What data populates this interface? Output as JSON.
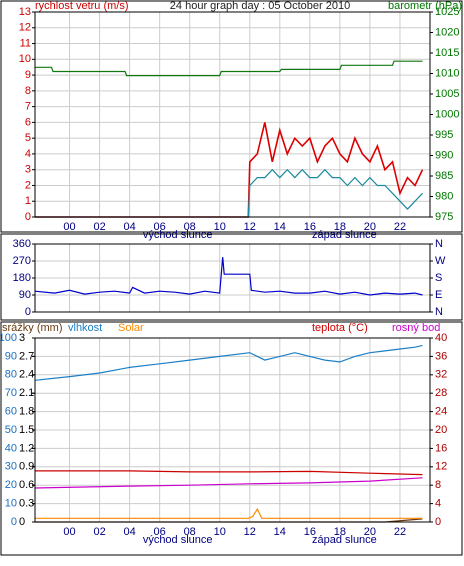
{
  "chart_data": [
    {
      "type": "line",
      "title": "24 hour graph day : 05 October 2010",
      "ylabel": "rychlost vetru (m/s)",
      "y2label": "barometr (hPa)",
      "xlim": [
        -2.3,
        24
      ],
      "xticks": [
        {
          "value": 0,
          "label": "00"
        },
        {
          "value": 2,
          "label": "02"
        },
        {
          "value": 4,
          "label": "04"
        },
        {
          "value": 6,
          "label": "06"
        },
        {
          "value": 8,
          "label": "08"
        },
        10,
        12,
        14,
        16,
        18,
        20,
        22
      ],
      "show_xtick_labels": true,
      "ylim": [
        0,
        13
      ],
      "yticks": [
        0,
        1,
        2,
        3,
        4,
        5,
        6,
        7,
        8,
        9,
        10,
        11,
        12,
        13
      ],
      "ycolor": "#cc0000",
      "y2lim": [
        975,
        1025
      ],
      "y2ticks": [
        975,
        980,
        985,
        990,
        995,
        1000,
        1005,
        1010,
        1015,
        1020,
        1025
      ],
      "y2color": "#007700",
      "grid": true,
      "annotations": [
        {
          "text": "východ slunce",
          "x": 7.2
        },
        {
          "text": "západ slunce",
          "x": 18.3
        }
      ],
      "series": [
        {
          "color": "#dd0000",
          "axis": "y",
          "x": [
            -2.3,
            11.9,
            12,
            12.5,
            13,
            13.5,
            14,
            14.5,
            15,
            15.5,
            16,
            16.5,
            17,
            17.5,
            18,
            18.5,
            19,
            19.5,
            20,
            20.5,
            21,
            21.5,
            22,
            22.5,
            23,
            23.5
          ],
          "values": [
            0,
            0,
            3.5,
            4,
            6,
            3.5,
            5.5,
            4,
            5,
            4.5,
            5,
            3.5,
            4.5,
            5,
            4,
            3.5,
            5,
            4,
            3.5,
            4.5,
            3,
            3.5,
            1.5,
            2.5,
            2,
            3
          ]
        },
        {
          "color": "#1a8aa0",
          "axis": "y",
          "x": [
            -2.3,
            11.9,
            12,
            12.5,
            13,
            13.5,
            14,
            14.5,
            15,
            15.5,
            16,
            16.5,
            17,
            17.5,
            18,
            18.5,
            19,
            19.5,
            20,
            20.5,
            21,
            21.5,
            22,
            22.5,
            23,
            23.5
          ],
          "values": [
            0,
            0,
            2,
            2.5,
            2.5,
            3,
            2.5,
            3,
            2.5,
            3,
            2.5,
            2.5,
            3,
            2.5,
            2.5,
            2,
            2.5,
            2,
            2.5,
            2,
            2,
            1.5,
            1,
            0.5,
            1,
            1.5
          ]
        },
        {
          "color": "#117711",
          "axis": "y2",
          "x": [
            -2.3,
            -1.2,
            -1.1,
            3.7,
            3.8,
            10,
            10.1,
            14,
            14.1,
            18,
            18.1,
            21.5,
            21.6,
            23.5
          ],
          "values": [
            1011.5,
            1011.5,
            1010.5,
            1010.5,
            1009.5,
            1009.5,
            1010.5,
            1010.5,
            1011,
            1011,
            1012,
            1012,
            1013,
            1013
          ]
        }
      ]
    },
    {
      "type": "line",
      "xlim": [
        -2.3,
        24
      ],
      "xticks": [
        0,
        2,
        4,
        6,
        8,
        10,
        12,
        14,
        16,
        18,
        20,
        22
      ],
      "show_xtick_labels": false,
      "ylim": [
        0,
        360
      ],
      "yticks": [
        0,
        90,
        180,
        270,
        360
      ],
      "ycolor": "#000080",
      "y2lim": [
        0,
        360
      ],
      "y2ticks": [
        {
          "value": 0,
          "label": "N"
        },
        {
          "value": 90,
          "label": "E"
        },
        {
          "value": 180,
          "label": "S"
        },
        {
          "value": 270,
          "label": "W"
        },
        {
          "value": 360,
          "label": "N"
        }
      ],
      "y2color": "#000080",
      "grid": true,
      "series": [
        {
          "color": "#0000cc",
          "axis": "y",
          "x": [
            -2.3,
            -1,
            0,
            1,
            2,
            3,
            4,
            4.2,
            5,
            6,
            7,
            8,
            9,
            10,
            10.2,
            10.3,
            12,
            12.1,
            13,
            14,
            15,
            16,
            17,
            18,
            19,
            20,
            21,
            22,
            23,
            23.5
          ],
          "values": [
            110,
            100,
            115,
            95,
            105,
            110,
            100,
            130,
            100,
            110,
            105,
            95,
            110,
            100,
            290,
            200,
            200,
            115,
            105,
            110,
            100,
            100,
            110,
            95,
            105,
            90,
            100,
            95,
            100,
            90
          ]
        }
      ]
    },
    {
      "type": "line",
      "xlim": [
        -2.3,
        24
      ],
      "xticks": [
        {
          "value": 0,
          "label": "00"
        },
        {
          "value": 2,
          "label": "02"
        },
        {
          "value": 4,
          "label": "04"
        },
        {
          "value": 6,
          "label": "06"
        },
        {
          "value": 8,
          "label": "08"
        },
        10,
        12,
        14,
        16,
        18,
        20,
        22
      ],
      "show_xtick_labels": true,
      "ylim": [
        0,
        100
      ],
      "yticks": [
        0,
        10,
        20,
        30,
        40,
        50,
        60,
        70,
        80,
        90,
        100
      ],
      "ycolor": "#1a6fc0",
      "y3lim": [
        0,
        3
      ],
      "y3ticks": [
        0,
        0.3,
        0.6,
        0.9,
        1.2,
        1.5,
        1.8,
        2.1,
        2.4,
        2.7,
        3
      ],
      "y3color": "#000000",
      "y2lim": [
        0,
        40
      ],
      "y2ticks": [
        0,
        4,
        8,
        12,
        16,
        20,
        24,
        28,
        32,
        36,
        40
      ],
      "y2color": "#aa0000",
      "grid": true,
      "legend": "top",
      "annotations": [
        {
          "text": "východ slunce",
          "x": 7.2
        },
        {
          "text": "západ slunce",
          "x": 18.3
        }
      ],
      "series": [
        {
          "name": "srážky (mm)",
          "color": "#6b3a10",
          "axis": "y3",
          "x": [
            -2.3,
            21,
            23.5
          ],
          "values": [
            0,
            0,
            0.05
          ]
        },
        {
          "name": "vlhkost",
          "color": "#1a7fc8",
          "axis": "y",
          "x": [
            -2.3,
            0,
            2,
            4,
            6,
            8,
            10,
            12,
            13,
            14,
            15,
            16,
            17,
            18,
            19,
            20,
            21,
            22,
            23,
            23.5
          ],
          "values": [
            77,
            79,
            81,
            84,
            86,
            88,
            90,
            92,
            88,
            90,
            92,
            90,
            88,
            87,
            90,
            92,
            93,
            94,
            95,
            96
          ]
        },
        {
          "name": "Solar",
          "color": "#ff8800",
          "axis": "y",
          "x": [
            -2.3,
            11.9,
            12.2,
            12.5,
            12.8,
            13.5,
            23.5
          ],
          "values": [
            2,
            2,
            3,
            7,
            2,
            2,
            2
          ]
        },
        {
          "name": "teplota (°C)",
          "color": "#cc0000",
          "axis": "y2",
          "x": [
            -2.3,
            4,
            8,
            12,
            16,
            20,
            23.5
          ],
          "values": [
            11.1,
            11.1,
            10.9,
            10.9,
            11.0,
            10.6,
            10.3
          ]
        },
        {
          "name": "rosný bod",
          "color": "#cc00cc",
          "axis": "y2",
          "x": [
            -2.3,
            4,
            8,
            12,
            16,
            20,
            23.5
          ],
          "values": [
            7.4,
            7.8,
            8.0,
            8.3,
            8.5,
            8.9,
            9.6
          ]
        }
      ]
    }
  ]
}
